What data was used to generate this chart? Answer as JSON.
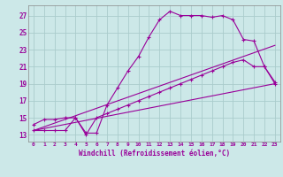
{
  "xlabel": "Windchill (Refroidissement éolien,°C)",
  "bg_color": "#cce8e8",
  "grid_color": "#aacccc",
  "line_color": "#990099",
  "x_ticks": [
    0,
    1,
    2,
    3,
    4,
    5,
    6,
    7,
    8,
    9,
    10,
    11,
    12,
    13,
    14,
    15,
    16,
    17,
    18,
    19,
    20,
    21,
    22,
    23
  ],
  "y_ticks": [
    13,
    15,
    17,
    19,
    21,
    23,
    25,
    27
  ],
  "ylim": [
    12.2,
    28.2
  ],
  "xlim": [
    -0.5,
    23.5
  ],
  "line1_x": [
    0,
    1,
    2,
    3,
    4,
    5,
    6,
    7,
    8,
    9,
    10,
    11,
    12,
    13,
    14,
    15,
    16,
    17,
    18,
    19,
    20,
    21,
    22,
    23
  ],
  "line1_y": [
    14.2,
    14.8,
    14.8,
    15.0,
    15.0,
    13.2,
    13.2,
    16.5,
    18.5,
    20.5,
    22.2,
    24.5,
    26.5,
    27.5,
    27.0,
    27.0,
    27.0,
    26.8,
    27.0,
    26.5,
    24.2,
    24.0,
    21.0,
    19.0
  ],
  "line2_x": [
    0,
    1,
    2,
    3,
    4,
    5,
    6,
    7,
    8,
    9,
    10,
    11,
    12,
    13,
    14,
    15,
    16,
    17,
    18,
    19,
    20,
    21,
    22,
    23
  ],
  "line2_y": [
    13.5,
    13.5,
    13.5,
    13.5,
    15.0,
    13.0,
    15.0,
    15.5,
    16.0,
    16.5,
    17.0,
    17.5,
    18.0,
    18.5,
    19.0,
    19.5,
    20.0,
    20.5,
    21.0,
    21.5,
    21.8,
    21.0,
    21.0,
    19.2
  ],
  "line3_x": [
    0,
    23
  ],
  "line3_y": [
    13.5,
    23.5
  ],
  "line4_x": [
    0,
    23
  ],
  "line4_y": [
    13.5,
    19.0
  ]
}
